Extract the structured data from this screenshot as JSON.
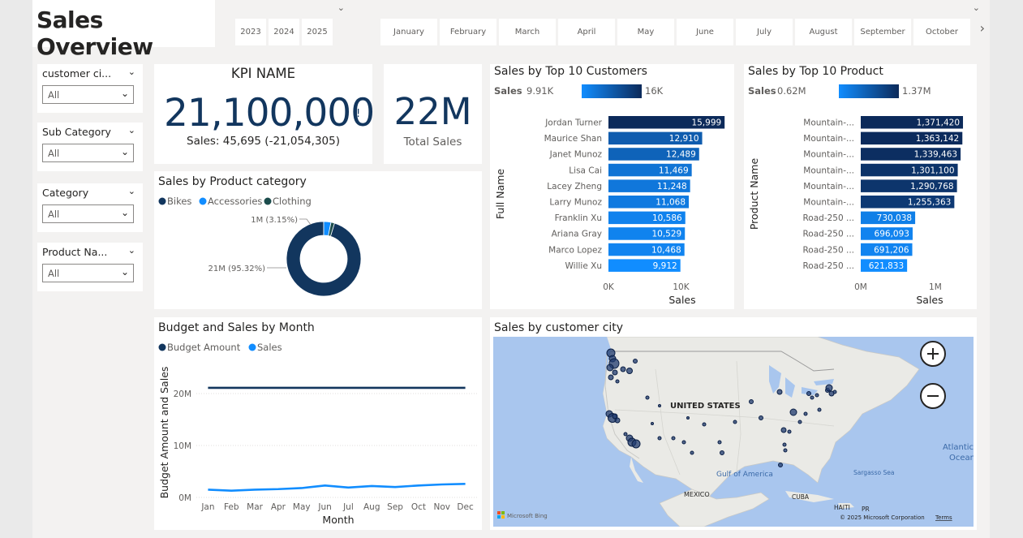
{
  "header": {
    "title": "Sales Overview"
  },
  "years": [
    "2023",
    "2024",
    "2025"
  ],
  "months": [
    "January",
    "February",
    "March",
    "April",
    "May",
    "June",
    "July",
    "August",
    "September",
    "October"
  ],
  "slicers": [
    {
      "label": "customer ci...",
      "value": "All"
    },
    {
      "label": "Sub Category",
      "value": "All"
    },
    {
      "label": "Category",
      "value": "All"
    },
    {
      "label": "Product Na...",
      "value": "All"
    }
  ],
  "kpi": {
    "name": "KPI NAME",
    "value": "21,100,000",
    "exclamation": "!",
    "sub": "Sales: 45,695 (-21,054,305)"
  },
  "card": {
    "value": "22M",
    "label": "Total Sales"
  },
  "colors": {
    "dark": "#12365e",
    "bikes": "#12365e",
    "accessories": "#118dff",
    "clothing": "#1b4c4c",
    "sales_line": "#118dff"
  },
  "chart_data": [
    {
      "id": "product_category",
      "type": "pie",
      "title": "Sales by Product category",
      "legend": [
        "Bikes",
        "Accessories",
        "Clothing"
      ],
      "slices": [
        {
          "name": "Bikes",
          "value": 95.32,
          "label": "21M (95.32%)"
        },
        {
          "name": "Accessories",
          "value": 3.15,
          "label": "1M (3.15%)"
        },
        {
          "name": "Clothing",
          "value": 1.53
        }
      ]
    },
    {
      "id": "top_customers",
      "type": "bar",
      "title": "Sales by Top 10 Customers",
      "legend": {
        "label": "Sales",
        "min": "9.91K",
        "max": "16K"
      },
      "categories": [
        "Jordan Turner",
        "Maurice Shan",
        "Janet Munoz",
        "Lisa Cai",
        "Lacey Zheng",
        "Larry Munoz",
        "Franklin Xu",
        "Ariana Gray",
        "Marco Lopez",
        "Willie Xu"
      ],
      "values": [
        15999,
        12910,
        12489,
        11469,
        11248,
        11068,
        10586,
        10529,
        10468,
        9912
      ],
      "labels": [
        "15,999",
        "12,910",
        "12,489",
        "11,469",
        "11,248",
        "11,068",
        "10,586",
        "10,529",
        "10,468",
        "9,912"
      ],
      "xlabel": "Sales",
      "ylabel": "Full Name",
      "ticks": [
        "0K",
        "10K",
        "20K"
      ],
      "xlim": [
        0,
        20000
      ]
    },
    {
      "id": "top_products",
      "type": "bar",
      "title": "Sales by Top 10 Product",
      "legend": {
        "label": "Sales",
        "min": "0.62M",
        "max": "1.37M"
      },
      "categories": [
        "Mountain-...",
        "Mountain-...",
        "Mountain-...",
        "Mountain-...",
        "Mountain-...",
        "Mountain-...",
        "Road-250 ...",
        "Road-250 ...",
        "Road-250 ...",
        "Road-250 ..."
      ],
      "values": [
        1371420,
        1363142,
        1339463,
        1301100,
        1290768,
        1255363,
        730038,
        696093,
        691206,
        621833
      ],
      "labels": [
        "1,371,420",
        "1,363,142",
        "1,339,463",
        "1,301,100",
        "1,290,768",
        "1,255,363",
        "730,038",
        "696,093",
        "691,206",
        "621,833"
      ],
      "xlabel": "Sales",
      "ylabel": "Product Name",
      "ticks": [
        "0M",
        "1M"
      ],
      "xlim": [
        0,
        1850000
      ]
    },
    {
      "id": "budget_sales",
      "type": "line",
      "title": "Budget and Sales by Month",
      "legend": [
        "Budget Amount",
        "Sales"
      ],
      "categories": [
        "Jan",
        "Feb",
        "Mar",
        "Apr",
        "May",
        "Jun",
        "Jul",
        "Aug",
        "Sep",
        "Oct",
        "Nov",
        "Dec"
      ],
      "series": [
        {
          "name": "Budget Amount",
          "values": [
            21.1,
            21.1,
            21.1,
            21.1,
            21.1,
            21.1,
            21.1,
            21.1,
            21.1,
            21.1,
            21.1,
            21.1
          ]
        },
        {
          "name": "Sales",
          "values": [
            1.5,
            1.3,
            1.5,
            1.6,
            1.8,
            2.3,
            1.9,
            2.2,
            2.0,
            2.3,
            2.5,
            2.6
          ]
        }
      ],
      "xlabel": "Month",
      "ylabel": "Budget Amount and Sales",
      "ticks": [
        "0M",
        "10M",
        "20M"
      ],
      "ylim": [
        0,
        25
      ]
    }
  ],
  "map": {
    "title": "Sales by customer city",
    "country_label": "UNITED STATES",
    "labels": {
      "gulf": "Gulf of America",
      "mexico": "MEXICO",
      "cuba": "CUBA",
      "haiti": "HAITI",
      "pr": "PR",
      "sargasso": "Sargasso Sea",
      "atlantic1": "Atlantic",
      "atlantic2": "Ocean"
    },
    "bing": "Microsoft Bing",
    "copyright": "© 2025 Microsoft Corporation",
    "terms": "Terms"
  }
}
